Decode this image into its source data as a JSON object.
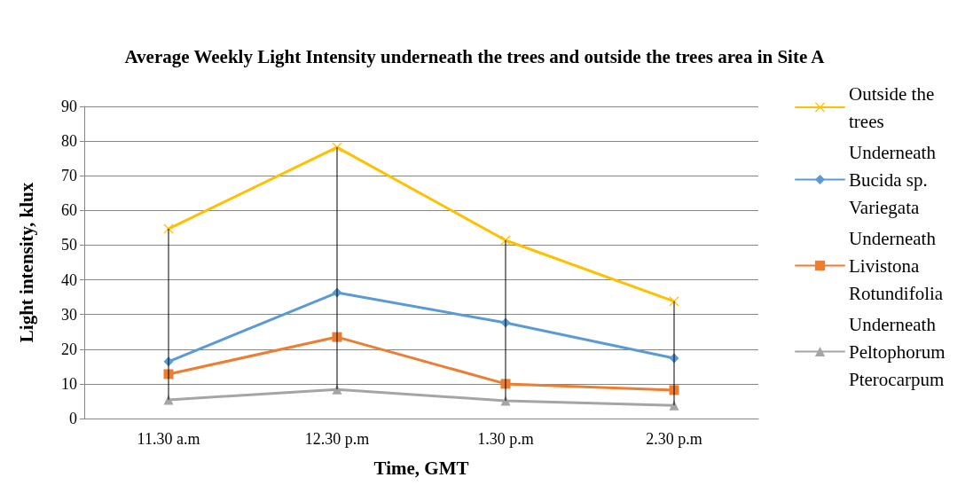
{
  "chart_data": {
    "type": "line",
    "title": "Average Weekly Light Intensity underneath the trees and outside the trees area in Site A",
    "xlabel": "Time, GMT",
    "ylabel": "Light intensity, klux",
    "categories": [
      "11.30 a.m",
      "12.30 p.m",
      "1.30 p.m",
      "2.30 p.m"
    ],
    "series": [
      {
        "name": "Outside the trees",
        "color": "#ffc000",
        "marker": "cross",
        "values": [
          54.7,
          78.2,
          51.4,
          33.8
        ],
        "errors": [
          [
            5.4,
            54.7
          ],
          [
            8.4,
            78.2
          ],
          [
            5.1,
            51.4
          ],
          [
            3.8,
            33.8
          ]
        ]
      },
      {
        "name": "Underneath Bucida sp. Variegata",
        "color": "#5b9bd5",
        "marker": "diamond",
        "values": [
          16.4,
          36.3,
          27.6,
          17.4
        ]
      },
      {
        "name": "Underneath Livistona Rotundifolia",
        "color": "#ed7d31",
        "marker": "square",
        "values": [
          12.8,
          23.5,
          10.0,
          8.2
        ]
      },
      {
        "name": "Underneath Peltophorum Pterocarpum",
        "color": "#a5a5a5",
        "marker": "triangle",
        "values": [
          5.4,
          8.4,
          5.1,
          3.8
        ]
      }
    ],
    "ylim": [
      0,
      90
    ],
    "yticks": [
      0,
      10,
      20,
      30,
      40,
      50,
      60,
      70,
      80,
      90
    ],
    "grid": "y",
    "legend": "right",
    "line_style": "solid"
  }
}
